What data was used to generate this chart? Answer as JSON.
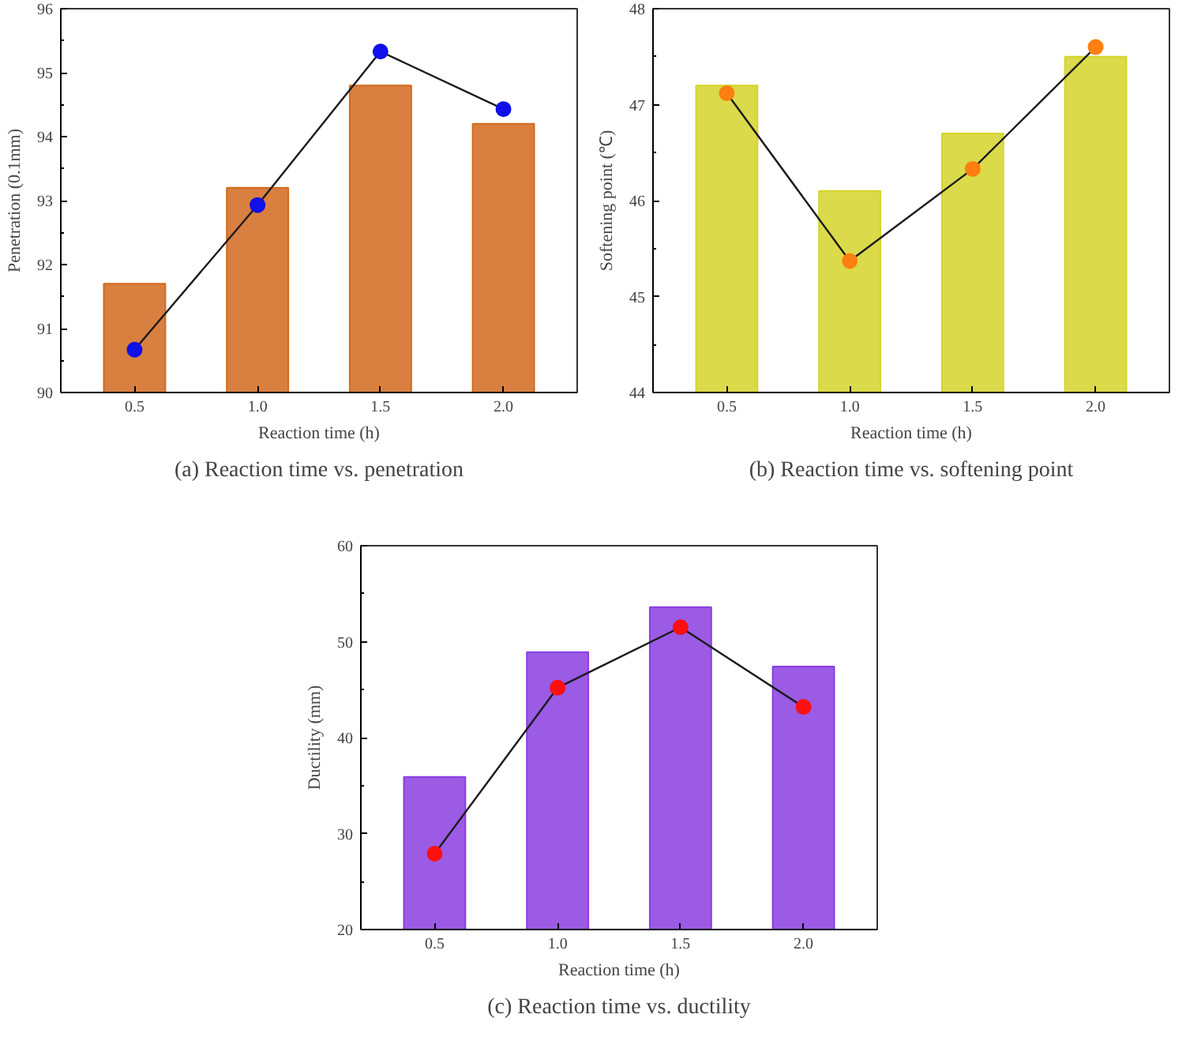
{
  "chart_data": [
    {
      "type": "bar",
      "title": "(a) Reaction time vs. penetration",
      "xlabel": "Reaction time (h)",
      "ylabel": "Penetration (0.1mm)",
      "categories": [
        "0.5",
        "1.0",
        "1.5",
        "2.0"
      ],
      "ylim": [
        90,
        96
      ],
      "yticks": [
        90,
        91,
        92,
        93,
        94,
        95,
        96
      ],
      "grid": false,
      "series": [
        {
          "color": "#d2691e",
          "values": [
            91.7,
            93.2,
            94.8,
            94.2
          ]
        },
        {
          "type": "line",
          "color": "#1a1a1a",
          "marker": "circle",
          "colors": [
            "#1010e8",
            "#1010e8",
            "#1010e8",
            "#1010e8"
          ],
          "values": [
            90.67,
            92.93,
            95.33,
            94.43
          ]
        }
      ]
    },
    {
      "type": "bar",
      "title": "(b) Reaction time vs. softening point",
      "xlabel": "Reaction time (h)",
      "ylabel": "Softening point (℃)",
      "categories": [
        "0.5",
        "1.0",
        "1.5",
        "2.0"
      ],
      "ylim": [
        44,
        48
      ],
      "yticks": [
        44,
        45,
        46,
        47,
        48
      ],
      "grid": false,
      "series": [
        {
          "color": "#d4d42a",
          "values": [
            47.2,
            46.1,
            46.7,
            47.5
          ]
        },
        {
          "type": "line",
          "color": "#1a1a1a",
          "marker": "circle",
          "colors": [
            "#ff7f10",
            "#ff7f10",
            "#ff7f10",
            "#ff7f10"
          ],
          "values": [
            47.12,
            45.37,
            46.33,
            47.6
          ]
        }
      ]
    },
    {
      "type": "bar",
      "title": "(c) Reaction time vs. ductility",
      "xlabel": "Reaction time (h)",
      "ylabel": "Ductility (mm)",
      "categories": [
        "0.5",
        "1.0",
        "1.5",
        "2.0"
      ],
      "ylim": [
        20,
        60
      ],
      "yticks": [
        20,
        30,
        40,
        50,
        60
      ],
      "grid": false,
      "series": [
        {
          "color": "#8a3ee0",
          "values": [
            35.9,
            48.9,
            53.6,
            47.4
          ]
        },
        {
          "type": "line",
          "color": "#1a1a1a",
          "marker": "circle",
          "colors": [
            "#ff1010",
            "#ff1010",
            "#ff1010",
            "#ff1010"
          ],
          "values": [
            27.9,
            45.2,
            51.5,
            43.2
          ]
        }
      ]
    }
  ]
}
